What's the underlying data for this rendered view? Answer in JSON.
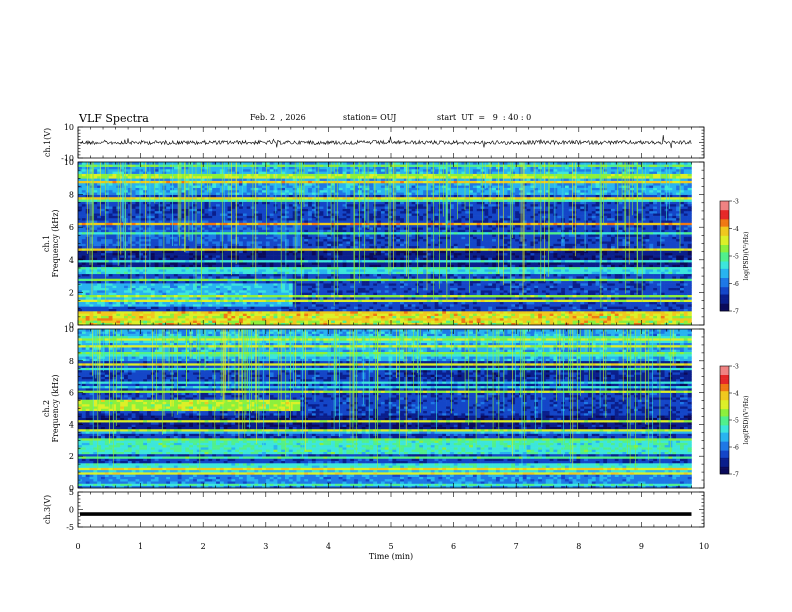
{
  "header": {
    "title": "VLF Spectra",
    "date": "Feb. 2  , 2026",
    "station": "station= OUJ",
    "start": "start  UT  =   9  : 40 : 0"
  },
  "chart_data": {
    "type": "heatmap",
    "title": "VLF Spectra",
    "xlabel": "Time  (min)",
    "xlim": [
      0,
      10
    ],
    "x_ticks": [
      "0",
      "1",
      "2",
      "3",
      "4",
      "5",
      "6",
      "7",
      "8",
      "9",
      "10"
    ],
    "data_end_min": 9.8,
    "panels": [
      {
        "id": "ch1-waveform",
        "kind": "line",
        "ylabel": "ch.1(V)",
        "ylim": [
          -10,
          10
        ],
        "y_ticks": [
          "10",
          "-10"
        ],
        "mean_value": 0,
        "trace_color": "#000000"
      },
      {
        "id": "ch1-spectrogram",
        "kind": "spectrogram",
        "ylabel_channel": "ch.1",
        "ylabel": "Frequency  (kHz)",
        "ylim": [
          0,
          10
        ],
        "y_ticks": [
          "0",
          "2",
          "4",
          "6",
          "8",
          "10"
        ],
        "colorbar": {
          "label": "log(PSD)(V²/Hz)",
          "range": [
            -7,
            -3
          ],
          "ticks": [
            "-3",
            "-4",
            "-5",
            "-6",
            "-7"
          ]
        }
      },
      {
        "id": "ch2-spectrogram",
        "kind": "spectrogram",
        "ylabel_channel": "ch.2",
        "ylabel": "Frequency  (kHz)",
        "ylim": [
          0,
          10
        ],
        "y_ticks": [
          "0",
          "2",
          "4",
          "6",
          "8",
          "10"
        ],
        "colorbar": {
          "label": "log(PSD)(V²/Hz)",
          "range": [
            -7,
            -3
          ],
          "ticks": [
            "-3",
            "-4",
            "-5",
            "-6",
            "-7"
          ]
        }
      },
      {
        "id": "ch3-waveform",
        "kind": "line",
        "ylabel": "ch.3(V)",
        "ylim": [
          -5,
          5
        ],
        "y_ticks": [
          "5",
          "0",
          "-5"
        ],
        "mean_value": -1.3,
        "trace_color": "#000000"
      }
    ],
    "colormap": [
      "#0a0a5a",
      "#0a1e8c",
      "#1446c8",
      "#1e78e6",
      "#28b4f0",
      "#3ce6dc",
      "#50f08c",
      "#8cf03c",
      "#dcf028",
      "#f0c81e",
      "#f07814",
      "#e62828",
      "#f08282",
      "#ffffff"
    ]
  }
}
